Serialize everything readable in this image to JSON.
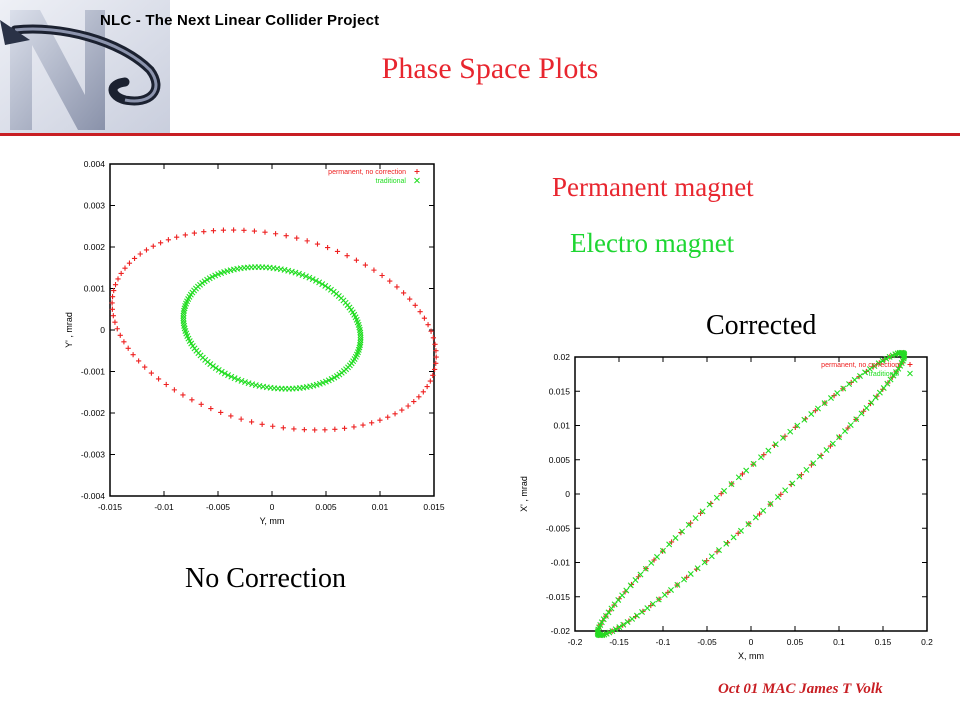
{
  "header": {
    "project_title": "NLC - The Next Linear Collider Project"
  },
  "slide": {
    "title": "Phase Space Plots",
    "legend_permanent": "Permanent  magnet",
    "legend_electro": "Electro magnet",
    "label_corrected": "Corrected",
    "label_no_correction": "No Correction",
    "footer": "Oct 01 MAC James T Volk"
  },
  "colors": {
    "permanent": "#ee2020",
    "traditional": "#22dd22",
    "title": "#e8262f",
    "accent": "#c81e23"
  },
  "chart_data": [
    {
      "type": "scatter",
      "xlabel": "Y, mm",
      "ylabel": "Y' , mrad",
      "xlim": [
        -0.015,
        0.015
      ],
      "ylim": [
        -0.004,
        0.004
      ],
      "xticks": [
        "-0.015",
        "-0.01",
        "-0.005",
        "0",
        "0.005",
        "0.01",
        "0.015"
      ],
      "yticks": [
        "0.004",
        "0.003",
        "0.002",
        "0.001",
        "0",
        "-0.001",
        "-0.002",
        "-0.003",
        "-0.004"
      ],
      "legend": "top-right",
      "series": [
        {
          "name": "permanent, no correction",
          "marker": "+",
          "color": "#ee2020",
          "ellipse": {
            "cx": 0.0002,
            "cy": 0.0,
            "a": 0.0153,
            "b": 0.00228,
            "angle_deg": -13.8
          },
          "points": 96
        },
        {
          "name": "traditional",
          "marker": "x",
          "color": "#22dd22",
          "ellipse": {
            "cx": 0.0,
            "cy": 5e-05,
            "a": 0.0083,
            "b": 0.00143,
            "angle_deg": -11.5
          },
          "points": 150
        }
      ]
    },
    {
      "type": "scatter",
      "xlabel": "X, mm",
      "ylabel": "X' , mrad",
      "xlim": [
        -0.2,
        0.2
      ],
      "ylim": [
        -0.02,
        0.02
      ],
      "xticks": [
        "-0.2",
        "-0.15",
        "-0.1",
        "-0.05",
        "0",
        "0.05",
        "0.1",
        "0.15",
        "0.2"
      ],
      "yticks": [
        "0.02",
        "0.015",
        "0.01",
        "0.005",
        "0",
        "-0.005",
        "-0.01",
        "-0.015",
        "-0.02"
      ],
      "legend": "top-right",
      "series": [
        {
          "name": "permanent, no correction",
          "marker": "+",
          "color": "#ee2020",
          "ellipse": {
            "cx": 0.0,
            "cy": 0.0,
            "a": 0.2358,
            "b": 0.003,
            "angle_deg": 42.6
          },
          "points": 90
        },
        {
          "name": "traditional",
          "marker": "x",
          "color": "#22dd22",
          "ellipse": {
            "cx": 0.0,
            "cy": 0.0,
            "a": 0.2358,
            "b": 0.003,
            "angle_deg": 42.6
          },
          "points": 130
        }
      ]
    }
  ]
}
